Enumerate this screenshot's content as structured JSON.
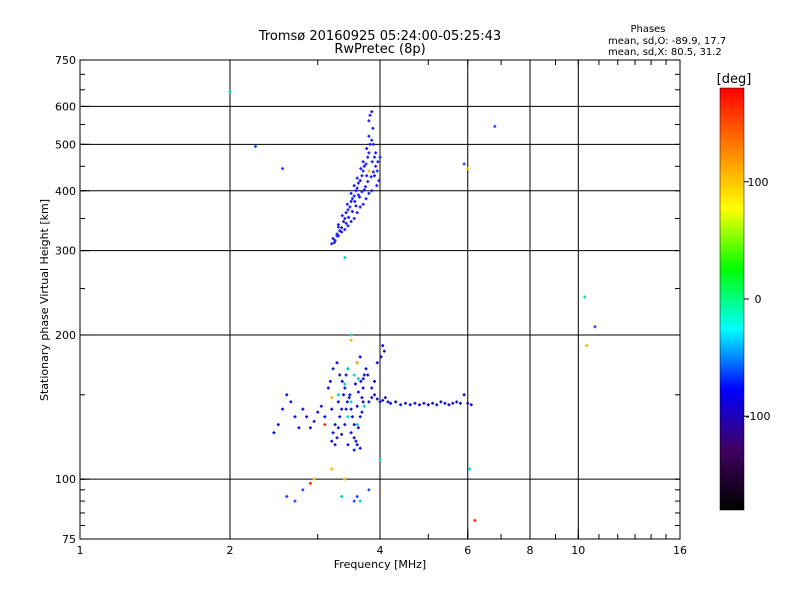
{
  "chart_data": {
    "type": "scatter",
    "title": "Tromsø 20160925 05:24:00-05:25:43",
    "subtitle": "RwPretec (8p)",
    "xlabel": "Frequency [MHz]",
    "ylabel": "Stationary phase Virtual Height [km]",
    "x_scale": "log",
    "y_scale": "log",
    "xlim": [
      1,
      16
    ],
    "ylim": [
      75,
      750
    ],
    "x_ticks": [
      1,
      2,
      4,
      6,
      8,
      10,
      16
    ],
    "x_tick_labels": [
      "1",
      "2",
      "4",
      "6",
      "8",
      "10",
      "16"
    ],
    "x_gridlines": [
      2,
      4,
      6,
      8,
      10
    ],
    "y_ticks": [
      75,
      100,
      200,
      300,
      400,
      500,
      600,
      750
    ],
    "y_tick_labels": [
      "75",
      "100",
      "200",
      "300",
      "400",
      "500",
      "600",
      "750"
    ],
    "y_gridlines": [
      100,
      200,
      300,
      400,
      500,
      600
    ],
    "grid": true,
    "legend_title": "Phases",
    "legend_lines": [
      "mean, sd,O: -89.9, 17.7",
      "mean, sd,X:  80.5, 31.2"
    ],
    "legend_placement": "top-right",
    "colorbar": {
      "label": "[deg]",
      "range": [
        -180,
        180
      ],
      "ticks": [
        100,
        0,
        -100
      ],
      "tick_labels": [
        "100",
        "0",
        "-100"
      ],
      "colors": [
        "#ff0000",
        "#ff8000",
        "#ffff00",
        "#00ff00",
        "#00ffff",
        "#0000ff",
        "#400060",
        "#000000"
      ]
    },
    "series": [
      {
        "points": [
          [
            3.2,
            310
          ],
          [
            3.22,
            318
          ],
          [
            3.25,
            315
          ],
          [
            3.28,
            325
          ],
          [
            3.3,
            322
          ],
          [
            3.32,
            330
          ],
          [
            3.35,
            335
          ],
          [
            3.3,
            340
          ],
          [
            3.38,
            345
          ],
          [
            3.4,
            350
          ],
          [
            3.36,
            355
          ],
          [
            3.42,
            360
          ],
          [
            3.45,
            365
          ],
          [
            3.48,
            370
          ],
          [
            3.44,
            375
          ],
          [
            3.5,
            380
          ],
          [
            3.52,
            385
          ],
          [
            3.55,
            390
          ],
          [
            3.5,
            395
          ],
          [
            3.58,
            400
          ],
          [
            3.6,
            405
          ],
          [
            3.55,
            410
          ],
          [
            3.62,
            415
          ],
          [
            3.65,
            420
          ],
          [
            3.6,
            425
          ],
          [
            3.68,
            430
          ],
          [
            3.7,
            440
          ],
          [
            3.66,
            445
          ],
          [
            3.72,
            450
          ],
          [
            3.75,
            455
          ],
          [
            3.7,
            460
          ],
          [
            3.78,
            470
          ],
          [
            3.8,
            480
          ],
          [
            3.76,
            490
          ],
          [
            3.82,
            500
          ],
          [
            3.85,
            510
          ],
          [
            3.8,
            520
          ],
          [
            3.88,
            500
          ],
          [
            3.9,
            470
          ],
          [
            3.86,
            460
          ],
          [
            3.92,
            450
          ],
          [
            3.95,
            440
          ],
          [
            3.9,
            430
          ],
          [
            3.98,
            420
          ],
          [
            3.94,
            410
          ],
          [
            3.85,
            400
          ],
          [
            3.8,
            395
          ],
          [
            3.75,
            385
          ],
          [
            3.7,
            375
          ],
          [
            3.65,
            370
          ],
          [
            3.6,
            360
          ],
          [
            3.55,
            350
          ],
          [
            3.5,
            345
          ],
          [
            3.45,
            338
          ],
          [
            3.4,
            332
          ],
          [
            3.35,
            328
          ],
          [
            3.28,
            322
          ],
          [
            3.24,
            312
          ],
          [
            3.46,
            352
          ],
          [
            3.64,
            388
          ],
          [
            3.74,
            408
          ],
          [
            3.84,
            428
          ],
          [
            3.58,
            372
          ],
          [
            3.52,
            362
          ],
          [
            3.68,
            398
          ],
          [
            3.78,
            418
          ],
          [
            3.88,
            438
          ],
          [
            3.92,
            480
          ],
          [
            3.96,
            460
          ],
          [
            4.0,
            470
          ],
          [
            3.82,
            575
          ],
          [
            3.85,
            585
          ],
          [
            3.8,
            560
          ],
          [
            3.87,
            540
          ],
          [
            3.3,
            336
          ],
          [
            3.42,
            342
          ],
          [
            3.56,
            380
          ],
          [
            3.62,
            392
          ],
          [
            3.72,
            402
          ],
          [
            3.76,
            430
          ]
        ]
      },
      {
        "points": [
          [
            3.2,
            120
          ],
          [
            3.22,
            125
          ],
          [
            3.25,
            130
          ],
          [
            3.28,
            122
          ],
          [
            3.3,
            128
          ],
          [
            3.32,
            135
          ],
          [
            3.35,
            140
          ],
          [
            3.3,
            145
          ],
          [
            3.38,
            150
          ],
          [
            3.4,
            155
          ],
          [
            3.36,
            160
          ],
          [
            3.42,
            165
          ],
          [
            3.45,
            170
          ],
          [
            3.48,
            150
          ],
          [
            3.44,
            145
          ],
          [
            3.5,
            140
          ],
          [
            3.52,
            135
          ],
          [
            3.55,
            130
          ],
          [
            3.5,
            125
          ],
          [
            3.58,
            120
          ],
          [
            3.6,
            118
          ],
          [
            3.55,
            122
          ],
          [
            3.62,
            128
          ],
          [
            3.65,
            135
          ],
          [
            3.6,
            142
          ],
          [
            3.68,
            148
          ],
          [
            3.7,
            155
          ],
          [
            3.66,
            160
          ],
          [
            3.72,
            165
          ],
          [
            3.75,
            170
          ],
          [
            3.7,
            145
          ],
          [
            3.4,
            130
          ],
          [
            3.35,
            124
          ],
          [
            3.25,
            118
          ],
          [
            3.45,
            118
          ],
          [
            3.55,
            115
          ],
          [
            3.65,
            116
          ],
          [
            3.2,
            140
          ],
          [
            3.1,
            135
          ],
          [
            3.05,
            142
          ],
          [
            3.0,
            138
          ],
          [
            2.95,
            132
          ],
          [
            2.9,
            128
          ],
          [
            2.85,
            135
          ],
          [
            2.8,
            140
          ],
          [
            3.15,
            155
          ],
          [
            3.18,
            160
          ],
          [
            3.22,
            170
          ],
          [
            3.28,
            175
          ],
          [
            3.32,
            165
          ],
          [
            3.8,
            145
          ],
          [
            3.85,
            148
          ],
          [
            3.9,
            150
          ],
          [
            3.95,
            147
          ],
          [
            4.0,
            145
          ],
          [
            4.05,
            146
          ],
          [
            4.1,
            148
          ],
          [
            4.15,
            145
          ],
          [
            4.2,
            144
          ],
          [
            4.3,
            145
          ],
          [
            4.4,
            143
          ],
          [
            4.5,
            144
          ],
          [
            4.6,
            143
          ],
          [
            4.7,
            144
          ],
          [
            4.8,
            143
          ],
          [
            4.9,
            144
          ],
          [
            5.0,
            143
          ],
          [
            5.1,
            144
          ],
          [
            5.2,
            143
          ],
          [
            5.3,
            145
          ],
          [
            5.4,
            144
          ],
          [
            5.5,
            143
          ],
          [
            5.6,
            144
          ],
          [
            5.7,
            145
          ],
          [
            5.8,
            144
          ],
          [
            5.9,
            150
          ],
          [
            6.0,
            144
          ],
          [
            6.1,
            143
          ],
          [
            4.05,
            190
          ],
          [
            4.08,
            185
          ],
          [
            4.02,
            180
          ],
          [
            3.95,
            175
          ],
          [
            3.9,
            160
          ],
          [
            3.85,
            155
          ],
          [
            3.6,
            175
          ],
          [
            3.65,
            180
          ],
          [
            3.7,
            162
          ],
          [
            3.62,
            152
          ],
          [
            3.68,
            138
          ],
          [
            3.42,
            140
          ],
          [
            2.75,
            128
          ],
          [
            2.7,
            135
          ],
          [
            2.65,
            145
          ],
          [
            2.6,
            150
          ],
          [
            2.55,
            140
          ],
          [
            2.5,
            130
          ],
          [
            2.45,
            125
          ],
          [
            3.47,
            148
          ],
          [
            3.57,
            158
          ],
          [
            3.78,
            165
          ]
        ]
      },
      {
        "points": [
          [
            2.25,
            495
          ],
          [
            2.55,
            445
          ],
          [
            5.9,
            455
          ],
          [
            6.8,
            545
          ],
          [
            10.8,
            208
          ],
          [
            2.6,
            92
          ],
          [
            2.7,
            90
          ],
          [
            2.8,
            95
          ],
          [
            3.6,
            92
          ],
          [
            3.8,
            95
          ],
          [
            3.55,
            90
          ]
        ]
      },
      {
        "points": [
          [
            2.0,
            645
          ],
          [
            3.4,
            290
          ],
          [
            3.5,
            200
          ],
          [
            3.45,
            170
          ],
          [
            3.4,
            158
          ],
          [
            3.5,
            145
          ],
          [
            3.45,
            135
          ],
          [
            3.6,
            130
          ],
          [
            3.3,
            150
          ],
          [
            3.55,
            165
          ],
          [
            4.0,
            110
          ],
          [
            6.05,
            105
          ],
          [
            10.3,
            240
          ],
          [
            3.35,
            92
          ],
          [
            3.65,
            90
          ],
          [
            3.62,
            162
          ],
          [
            3.72,
            142
          ]
        ]
      },
      {
        "points": [
          [
            3.2,
            105
          ],
          [
            3.5,
            195
          ],
          [
            3.4,
            100
          ],
          [
            3.2,
            148
          ],
          [
            3.6,
            175
          ],
          [
            2.95,
            100
          ],
          [
            10.4,
            190
          ],
          [
            6.0,
            445
          ],
          [
            3.8,
            440
          ]
        ]
      },
      {
        "points": [
          [
            6.2,
            82
          ],
          [
            3.1,
            130
          ],
          [
            2.9,
            98
          ]
        ]
      }
    ],
    "series_colors": [
      "#1a1aff",
      "#0a0ad0",
      "#2040ff",
      "#00d0c0",
      "#ffb000",
      "#ff2000"
    ]
  }
}
